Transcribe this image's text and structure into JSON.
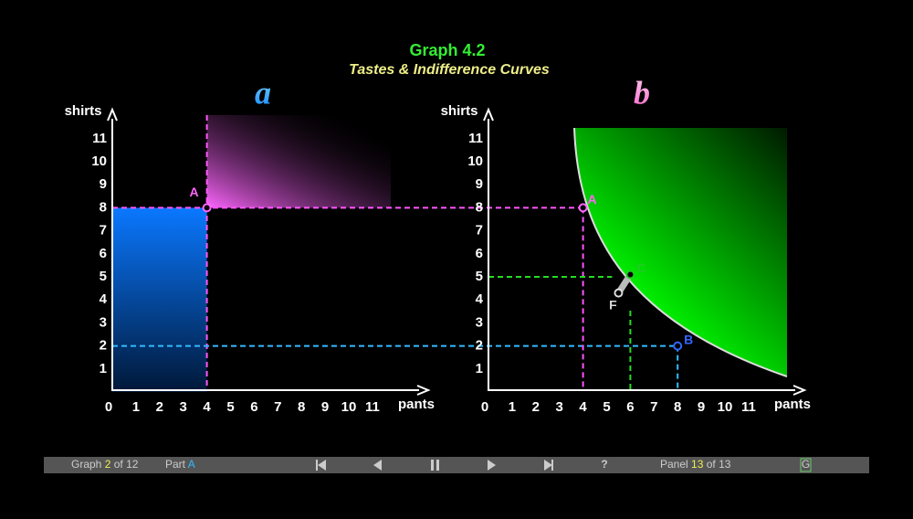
{
  "header": {
    "title": "Graph 4.2",
    "subtitle": "Tastes & Indifference Curves"
  },
  "panels": [
    {
      "label": "a",
      "y_axis_title": "shirts",
      "x_axis_title": "pants",
      "xticks": [
        0,
        1,
        2,
        3,
        4,
        5,
        6,
        7,
        8,
        9,
        10,
        11
      ],
      "yticks": [
        1,
        2,
        3,
        4,
        5,
        6,
        7,
        8,
        9,
        10,
        11
      ],
      "highlights": [
        {
          "axis": "x",
          "value": 4,
          "color": "#ff55ff"
        },
        {
          "axis": "y",
          "value": 8,
          "color": "#ff55ff"
        },
        {
          "axis": "y",
          "value": 2,
          "color": "#33bbff"
        }
      ],
      "points": [
        {
          "label": "A",
          "x": 4,
          "y": 8,
          "color": "#ff66ff"
        }
      ]
    },
    {
      "label": "b",
      "y_axis_title": "shirts",
      "x_axis_title": "pants",
      "xticks": [
        0,
        1,
        2,
        3,
        4,
        5,
        6,
        7,
        8,
        9,
        10,
        11
      ],
      "yticks": [
        1,
        2,
        3,
        4,
        5,
        6,
        7,
        8,
        9,
        10,
        11
      ],
      "highlights": [
        {
          "axis": "x",
          "value": 4,
          "color": "#ff55ff"
        },
        {
          "axis": "x",
          "value": 6,
          "color": "#22dd22"
        },
        {
          "axis": "x",
          "value": 8,
          "color": "#33bbff"
        },
        {
          "axis": "y",
          "value": 8,
          "color": "#ff55ff"
        },
        {
          "axis": "y",
          "value": 5,
          "color": "#22dd22"
        },
        {
          "axis": "y",
          "value": 2,
          "color": "#33bbff"
        }
      ],
      "points": [
        {
          "label": "A",
          "x": 4,
          "y": 8,
          "color": "#ff66ff"
        },
        {
          "label": "B",
          "x": 8,
          "y": 2,
          "color": "#3366ff"
        },
        {
          "label": "C",
          "x": 6,
          "y": 5.1,
          "color": "#22cc22"
        },
        {
          "label": "F",
          "x": 5.5,
          "y": 4.3,
          "color": "#dddddd"
        }
      ]
    }
  ],
  "nav": {
    "graph": {
      "prefix": "Graph",
      "current": "2",
      "suffix": "of 12"
    },
    "part": {
      "prefix": "Part",
      "current": "A"
    },
    "help": "?",
    "panel": {
      "prefix": "Panel",
      "current": "13",
      "suffix": "of 13"
    },
    "key": "G"
  }
}
